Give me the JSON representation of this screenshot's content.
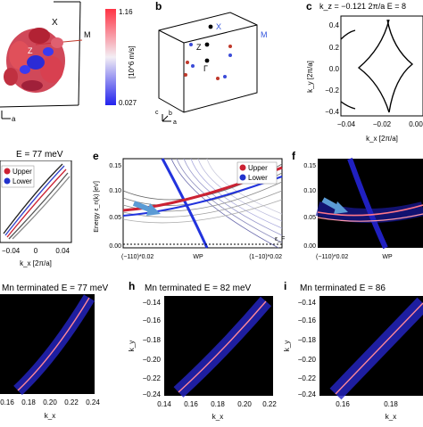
{
  "panels": {
    "b": {
      "label": "b",
      "points": [
        {
          "name": "X",
          "text": "X",
          "color": "#3355dd"
        },
        {
          "name": "M",
          "text": "M",
          "color": "#3355dd"
        },
        {
          "name": "Z",
          "text": "Z",
          "color": "#000000"
        },
        {
          "name": "Gamma",
          "text": "Γ",
          "color": "#000000"
        },
        {
          "name": "c",
          "text": "c",
          "color": "#000000"
        },
        {
          "name": "b",
          "text": "b",
          "color": "#000000"
        },
        {
          "name": "a",
          "text": "a",
          "color": "#000000"
        }
      ]
    },
    "a": {
      "colorbar": {
        "max": "1.16",
        "min": "0.027",
        "unit": "[10^6 m/s]"
      },
      "labels": {
        "M": "M",
        "X": "X",
        "Z": "Z",
        "a": "a"
      }
    },
    "c": {
      "label": "c",
      "title": "k_z = −0.121 2π/a  E = 8",
      "ylabel": "k_y [2π/a]",
      "xlabel": "k_x [2π/a]",
      "yticks": [
        "0.4",
        "0.2",
        "0.0",
        "−0.2",
        "−0.4"
      ],
      "xticks": [
        "−0.04",
        "−0.02",
        "0.00"
      ]
    },
    "d": {
      "title": "E = 77 meV",
      "legend": [
        "Upper",
        "Lower"
      ],
      "xlabel": "k_x [2π/a]",
      "xticks": [
        "−0.04",
        "0",
        "0.04"
      ]
    },
    "e": {
      "label": "e",
      "ylabel": "Energy ε_n(k) [eV]",
      "yticks": [
        "0.15",
        "0.10",
        "0.05",
        "0.00"
      ],
      "xticks": [
        "(−110)*0.02",
        "WP",
        "(1−10)*0.02"
      ],
      "legend": [
        "Upper",
        "Lower"
      ],
      "annotation": "ε_F"
    },
    "f": {
      "label": "f",
      "yticks": [
        "0.15",
        "0.10",
        "0.05",
        "0.00"
      ],
      "xticks": [
        "(−110)*0.02",
        "WP"
      ]
    },
    "g": {
      "title": "Mn terminated E = 77 meV",
      "xlabel": "k_x",
      "xticks": [
        "0.16",
        "0.18",
        "0.20",
        "0.22",
        "0.24"
      ]
    },
    "h": {
      "label": "h",
      "title": "Mn terminated E = 82 meV",
      "ylabel": "k_y",
      "xlabel": "k_x",
      "yticks": [
        "−0.14",
        "−0.16",
        "−0.18",
        "−0.20",
        "−0.22",
        "−0.24"
      ],
      "xticks": [
        "0.14",
        "0.16",
        "0.18",
        "0.20",
        "0.22"
      ]
    },
    "i": {
      "label": "i",
      "title": "Mn terminated E = 86",
      "ylabel": "k_y",
      "xlabel": "k_x",
      "yticks": [
        "−0.14",
        "−0.16",
        "−0.18",
        "−0.20",
        "−0.22",
        "−0.24"
      ],
      "xticks": [
        "0.16",
        "0.18"
      ]
    }
  }
}
